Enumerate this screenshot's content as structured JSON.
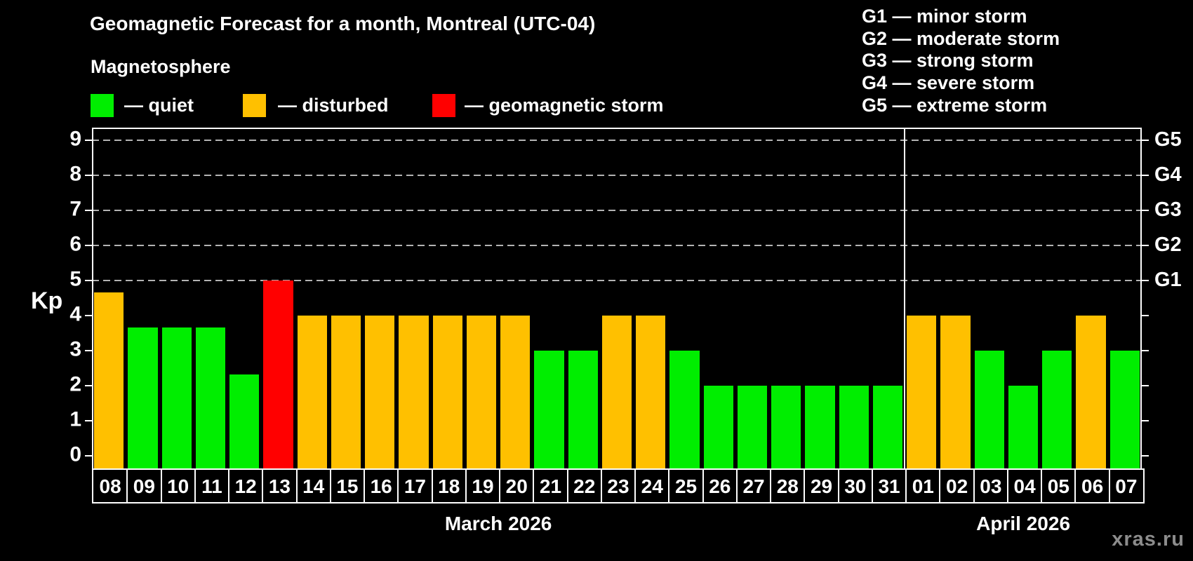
{
  "title": "Geomagnetic Forecast for a month, Montreal (UTC-04)",
  "legend": {
    "heading": "Magnetosphere",
    "items": [
      {
        "key": "quiet",
        "label": "— quiet",
        "color": "#00ee00"
      },
      {
        "key": "disturbed",
        "label": "— disturbed",
        "color": "#ffc000"
      },
      {
        "key": "storm",
        "label": "— geomagnetic storm",
        "color": "#ff0000"
      }
    ]
  },
  "g_scale_legend": {
    "lines": [
      "G1 — minor storm",
      "G2 — moderate storm",
      "G3 — strong storm",
      "G4 — severe storm",
      "G5 — extreme storm"
    ]
  },
  "watermark": "xras.ru",
  "colors": {
    "quiet": "#00ee00",
    "disturbed": "#ffc000",
    "storm": "#ff0000",
    "gridline": "#b3b3b3",
    "axis": "#ffffff",
    "background": "#000000",
    "watermark": "#8c8c8c"
  },
  "chart_data": {
    "type": "bar",
    "title": "Geomagnetic Forecast for a month, Montreal (UTC-04)",
    "ylabel": "Kp",
    "xlabel": "",
    "ylim": [
      0,
      9
    ],
    "y_ticks": [
      0,
      1,
      2,
      3,
      4,
      5,
      6,
      7,
      8,
      9
    ],
    "gridlines_at_kp": [
      5,
      6,
      7,
      8,
      9
    ],
    "grid": "dashed horizontal at storm levels only",
    "legend_position": "top",
    "right_axis_labels": [
      {
        "kp": 5,
        "label": "G1"
      },
      {
        "kp": 6,
        "label": "G2"
      },
      {
        "kp": 7,
        "label": "G3"
      },
      {
        "kp": 8,
        "label": "G4"
      },
      {
        "kp": 9,
        "label": "G5"
      }
    ],
    "months": [
      {
        "label": "March 2026",
        "days": [
          {
            "date": "08",
            "kp": 4.67,
            "status": "disturbed"
          },
          {
            "date": "09",
            "kp": 3.67,
            "status": "quiet"
          },
          {
            "date": "10",
            "kp": 3.67,
            "status": "quiet"
          },
          {
            "date": "11",
            "kp": 3.67,
            "status": "quiet"
          },
          {
            "date": "12",
            "kp": 2.33,
            "status": "quiet"
          },
          {
            "date": "13",
            "kp": 5.0,
            "status": "storm"
          },
          {
            "date": "14",
            "kp": 4.0,
            "status": "disturbed"
          },
          {
            "date": "15",
            "kp": 4.0,
            "status": "disturbed"
          },
          {
            "date": "16",
            "kp": 4.0,
            "status": "disturbed"
          },
          {
            "date": "17",
            "kp": 4.0,
            "status": "disturbed"
          },
          {
            "date": "18",
            "kp": 4.0,
            "status": "disturbed"
          },
          {
            "date": "19",
            "kp": 4.0,
            "status": "disturbed"
          },
          {
            "date": "20",
            "kp": 4.0,
            "status": "disturbed"
          },
          {
            "date": "21",
            "kp": 3.0,
            "status": "quiet"
          },
          {
            "date": "22",
            "kp": 3.0,
            "status": "quiet"
          },
          {
            "date": "23",
            "kp": 4.0,
            "status": "disturbed"
          },
          {
            "date": "24",
            "kp": 4.0,
            "status": "disturbed"
          },
          {
            "date": "25",
            "kp": 3.0,
            "status": "quiet"
          },
          {
            "date": "26",
            "kp": 2.0,
            "status": "quiet"
          },
          {
            "date": "27",
            "kp": 2.0,
            "status": "quiet"
          },
          {
            "date": "28",
            "kp": 2.0,
            "status": "quiet"
          },
          {
            "date": "29",
            "kp": 2.0,
            "status": "quiet"
          },
          {
            "date": "30",
            "kp": 2.0,
            "status": "quiet"
          },
          {
            "date": "31",
            "kp": 2.0,
            "status": "quiet"
          }
        ]
      },
      {
        "label": "April 2026",
        "days": [
          {
            "date": "01",
            "kp": 4.0,
            "status": "disturbed"
          },
          {
            "date": "02",
            "kp": 4.0,
            "status": "disturbed"
          },
          {
            "date": "03",
            "kp": 3.0,
            "status": "quiet"
          },
          {
            "date": "04",
            "kp": 2.0,
            "status": "quiet"
          },
          {
            "date": "05",
            "kp": 3.0,
            "status": "quiet"
          },
          {
            "date": "06",
            "kp": 4.0,
            "status": "disturbed"
          },
          {
            "date": "07",
            "kp": 3.0,
            "status": "quiet"
          }
        ]
      }
    ]
  }
}
